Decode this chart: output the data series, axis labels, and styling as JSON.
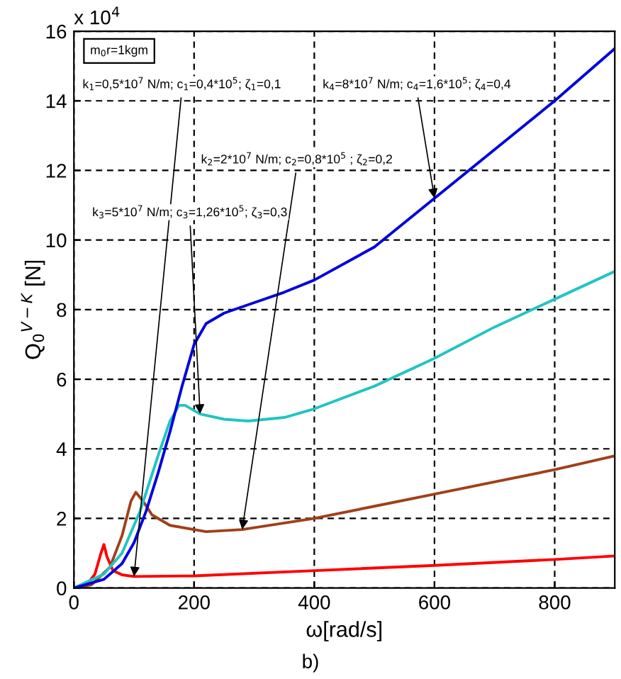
{
  "chart_data": {
    "type": "line",
    "xlabel": "ω[rad/s]",
    "ylabel": "Q$_{0}$$^{V−K}$ [N]",
    "xlim": [
      0,
      900
    ],
    "xticks": [
      0,
      200,
      400,
      600,
      800
    ],
    "ylim": [
      0,
      16
    ],
    "yticks": [
      0,
      2,
      4,
      6,
      8,
      10,
      12,
      14,
      16
    ],
    "grid": true,
    "line_style": "solid",
    "marker": "none",
    "legend": false,
    "series": [
      {
        "color": "#ff0000",
        "x": [
          0,
          20,
          35,
          45,
          50,
          55,
          65,
          80,
          100,
          200,
          400,
          600,
          800,
          900
        ],
        "values": [
          0,
          0.05,
          0.4,
          1.0,
          1.25,
          0.9,
          0.5,
          0.38,
          0.33,
          0.35,
          0.5,
          0.65,
          0.82,
          0.92
        ]
      },
      {
        "color": "#a0401a",
        "x": [
          0,
          30,
          60,
          80,
          95,
          103,
          115,
          130,
          160,
          220,
          280,
          400,
          500,
          600,
          700,
          800,
          900
        ],
        "values": [
          0,
          0.1,
          0.6,
          1.5,
          2.5,
          2.75,
          2.5,
          2.1,
          1.8,
          1.62,
          1.68,
          2.0,
          2.35,
          2.7,
          3.05,
          3.4,
          3.8
        ]
      },
      {
        "color": "#22c4c4",
        "x": [
          0,
          50,
          80,
          110,
          140,
          160,
          175,
          185,
          210,
          250,
          290,
          350,
          400,
          500,
          600,
          700,
          800,
          900
        ],
        "values": [
          0,
          0.4,
          1.0,
          2.2,
          3.8,
          4.8,
          5.25,
          5.25,
          5.0,
          4.85,
          4.8,
          4.9,
          5.15,
          5.8,
          6.6,
          7.5,
          8.3,
          9.1
        ]
      },
      {
        "color": "#0000dd",
        "x": [
          0,
          50,
          80,
          100,
          120,
          140,
          160,
          180,
          200,
          220,
          250,
          300,
          350,
          400,
          500,
          600,
          700,
          800,
          900
        ],
        "values": [
          0,
          0.25,
          0.7,
          1.3,
          2.2,
          3.3,
          4.5,
          5.8,
          7.0,
          7.6,
          7.9,
          8.2,
          8.5,
          8.85,
          9.8,
          11.2,
          12.6,
          14.0,
          15.5
        ]
      }
    ],
    "annotations": [
      "x 10$^{4}$",
      "m$_{0}$r=1kgm",
      "k$_{1}$=0,5*10$^{7}$ N/m; c$_{1}$=0,4*10$^{5}$; ζ$_{1}$=0,1",
      "k$_{4}$=8*10$^{7}$ N/m; c$_{4}$=1,6*10$^{5}$; ζ$_{4}$=0,4",
      "k$_{2}$=2*10$^{7}$ N/m; c$_{2}$=0,8*10$^{5}$ ; ζ$_{2}$=0,2",
      "k$_{3}$=5*10$^{7}$ N/m; c$_{3}$=1,26*10$^{5}$; ζ$_{3}$=0,3",
      "b)"
    ]
  }
}
